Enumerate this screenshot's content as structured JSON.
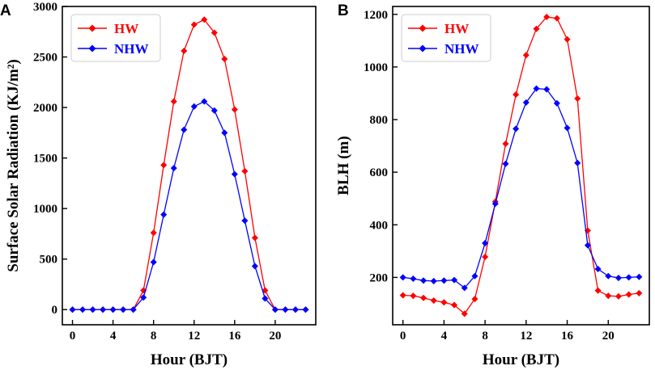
{
  "chart_data": [
    {
      "type": "line",
      "panel_label": "A",
      "xlabel": "Hour (BJT)",
      "ylabel": "Surface Solar Radiation (KJ/m²)",
      "xlim": [
        -1,
        24
      ],
      "ylim": [
        -150,
        3000
      ],
      "xticks": [
        0,
        4,
        8,
        12,
        16,
        20
      ],
      "yticks": [
        0,
        500,
        1000,
        1500,
        2000,
        2500,
        3000
      ],
      "legend_position": "top-left",
      "x": [
        0,
        1,
        2,
        3,
        4,
        5,
        6,
        7,
        8,
        9,
        10,
        11,
        12,
        13,
        14,
        15,
        16,
        17,
        18,
        19,
        20,
        21,
        22,
        23
      ],
      "series": [
        {
          "name": "HW",
          "color": "#ff0000",
          "values": [
            0,
            0,
            0,
            0,
            0,
            0,
            0,
            190,
            760,
            1430,
            2060,
            2560,
            2820,
            2870,
            2740,
            2480,
            1980,
            1370,
            710,
            190,
            0,
            0,
            0,
            0
          ]
        },
        {
          "name": "NHW",
          "color": "#0000ff",
          "values": [
            0,
            0,
            0,
            0,
            0,
            0,
            0,
            120,
            470,
            940,
            1400,
            1780,
            2010,
            2060,
            1970,
            1750,
            1340,
            880,
            430,
            110,
            0,
            0,
            0,
            0
          ]
        }
      ]
    },
    {
      "type": "line",
      "panel_label": "B",
      "xlabel": "Hour (BJT)",
      "ylabel": "BLH (m)",
      "xlim": [
        -1,
        24
      ],
      "ylim": [
        20,
        1230
      ],
      "xticks": [
        0,
        4,
        8,
        12,
        16,
        20
      ],
      "yticks": [
        200,
        400,
        600,
        800,
        1000,
        1200
      ],
      "legend_position": "top-left",
      "x": [
        0,
        1,
        2,
        3,
        4,
        5,
        6,
        7,
        8,
        9,
        10,
        11,
        12,
        13,
        14,
        15,
        16,
        17,
        18,
        19,
        20,
        21,
        22,
        23
      ],
      "series": [
        {
          "name": "HW",
          "color": "#ff0000",
          "values": [
            132,
            130,
            122,
            112,
            105,
            95,
            62,
            118,
            278,
            488,
            708,
            895,
            1045,
            1145,
            1190,
            1185,
            1105,
            880,
            378,
            150,
            130,
            128,
            135,
            140
          ]
        },
        {
          "name": "NHW",
          "color": "#0000ff",
          "values": [
            200,
            195,
            188,
            186,
            188,
            190,
            160,
            205,
            330,
            480,
            632,
            765,
            865,
            918,
            915,
            862,
            768,
            635,
            322,
            232,
            205,
            198,
            200,
            202
          ]
        }
      ]
    }
  ]
}
